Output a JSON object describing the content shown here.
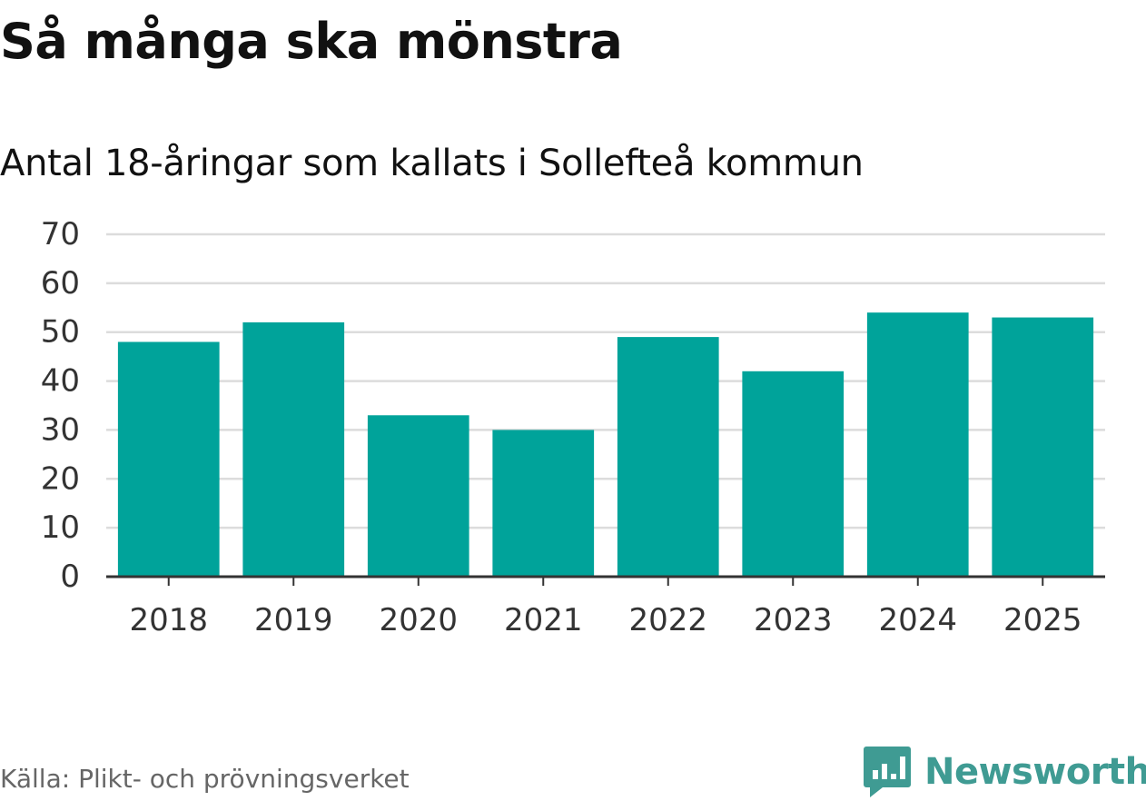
{
  "header": {
    "title": "Så många ska mönstra",
    "subtitle": "Antal 18-åringar som kallats i Sollefteå kommun"
  },
  "footer": {
    "source": "Källa: Plikt- och prövningsverket",
    "brand": "Newsworthy",
    "brand_icon": "bar-chart-speech-bubble-icon"
  },
  "colors": {
    "bar": "#00a39a",
    "grid": "#dcdcdc",
    "axis": "#333333",
    "brand": "#3f9b93"
  },
  "chart_data": {
    "type": "bar",
    "title": "Så många ska mönstra",
    "subtitle": "Antal 18-åringar som kallats i Sollefteå kommun",
    "categories": [
      "2018",
      "2019",
      "2020",
      "2021",
      "2022",
      "2023",
      "2024",
      "2025"
    ],
    "values": [
      48,
      52,
      33,
      30,
      49,
      42,
      54,
      53
    ],
    "yticks": [
      "0",
      "10",
      "20",
      "30",
      "40",
      "50",
      "60",
      "70"
    ],
    "ylim": [
      0,
      70
    ],
    "xlabel": "",
    "ylabel": "",
    "grid": true,
    "legend": "none"
  }
}
